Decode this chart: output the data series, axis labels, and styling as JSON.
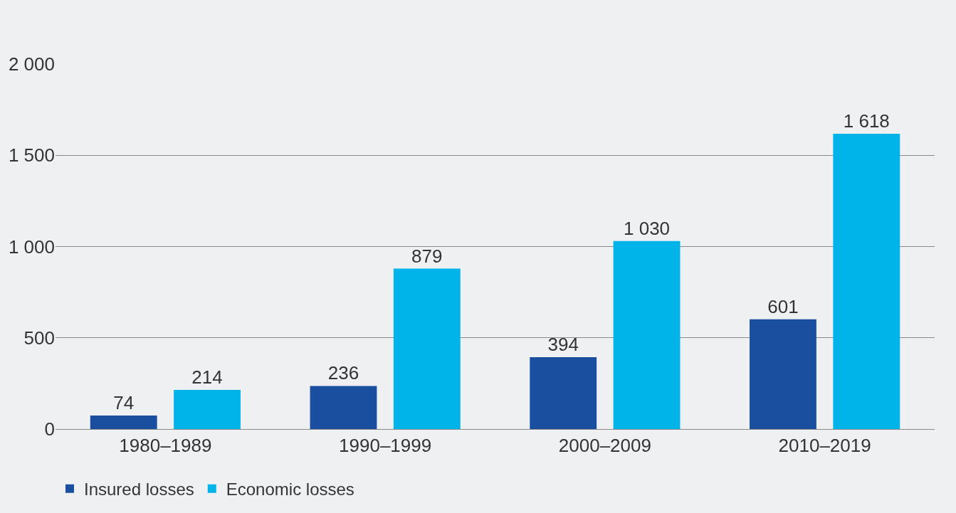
{
  "chart_data": {
    "type": "bar",
    "categories": [
      "1980–1989",
      "1990–1999",
      "2000–2009",
      "2010–2019"
    ],
    "series": [
      {
        "name": "Insured losses",
        "color": "#1a4f9f",
        "values": [
          74,
          236,
          394,
          601
        ],
        "value_labels": [
          "74",
          "236",
          "394",
          "601"
        ]
      },
      {
        "name": "Economic losses",
        "color": "#00b4ea",
        "values": [
          214,
          879,
          1030,
          1618
        ],
        "value_labels": [
          "214",
          "879",
          "1 030",
          "1 618"
        ]
      }
    ],
    "ylim": [
      0,
      2000
    ],
    "yticks": [
      0,
      500,
      {
        "value": 1000,
        "label": "1 000"
      },
      {
        "value": 1500,
        "label": "1 500"
      },
      {
        "value": 2000,
        "label": "2 000"
      }
    ],
    "grid": "y",
    "legend": "bottom left"
  }
}
